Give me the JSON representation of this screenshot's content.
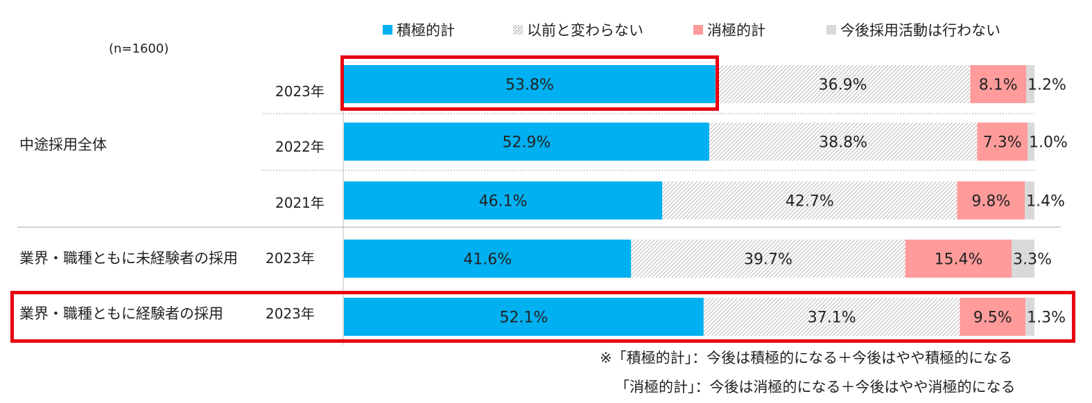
{
  "sample_size": "(n=1600)",
  "colors": {
    "positive": "#00b0f0",
    "unchanged": "#d9d9d9",
    "negative": "#ff9b9b",
    "no_hiring": "#d9d9d9",
    "highlight": "#e60012"
  },
  "legend": [
    {
      "key": "positive",
      "label": "積極的計",
      "pattern": "solid"
    },
    {
      "key": "unchanged",
      "label": "以前と変わらない",
      "pattern": "hatched"
    },
    {
      "key": "negative",
      "label": "消極的計",
      "pattern": "solid"
    },
    {
      "key": "no_hiring",
      "label": "今後採用活動は行わない",
      "pattern": "solid"
    }
  ],
  "groups": {
    "overall": "中途採用全体",
    "inexperienced": "業界・職種ともに未経験者の採用",
    "experienced": "業界・職種ともに経験者の採用"
  },
  "years": {
    "y2023a": "2023年",
    "y2022": "2022年",
    "y2021": "2021年",
    "y2023b": "2023年",
    "y2023c": "2023年"
  },
  "chart_data": {
    "type": "bar",
    "orientation": "horizontal",
    "stacked": "100%",
    "xlim": [
      0,
      100
    ],
    "categories": [
      "中途採用全体 2023年",
      "中途採用全体 2022年",
      "中途採用全体 2021年",
      "業界・職種ともに未経験者の採用 2023年",
      "業界・職種ともに経験者の採用 2023年"
    ],
    "series": [
      {
        "name": "積極的計",
        "values": [
          53.8,
          52.9,
          46.1,
          41.6,
          52.1
        ],
        "labels": [
          "53.8%",
          "52.9%",
          "46.1%",
          "41.6%",
          "52.1%"
        ]
      },
      {
        "name": "以前と変わらない",
        "values": [
          36.9,
          38.8,
          42.7,
          39.7,
          37.1
        ],
        "labels": [
          "36.9%",
          "38.8%",
          "42.7%",
          "39.7%",
          "37.1%"
        ]
      },
      {
        "name": "消極的計",
        "values": [
          8.1,
          7.3,
          9.8,
          15.4,
          9.5
        ],
        "labels": [
          "8.1%",
          "7.3%",
          "9.8%",
          "15.4%",
          "9.5%"
        ]
      },
      {
        "name": "今後採用活動は行わない",
        "values": [
          1.2,
          1.0,
          1.4,
          3.3,
          1.3
        ],
        "labels": [
          "1.2%",
          "1.0%",
          "1.4%",
          "3.3%",
          "1.3%"
        ]
      }
    ]
  },
  "notes": {
    "line1": "※「積極的計」：今後は積極的になる＋今後はやや積極的になる",
    "line2": "「消極的計」：今後は消極的になる＋今後はやや消極的になる"
  }
}
